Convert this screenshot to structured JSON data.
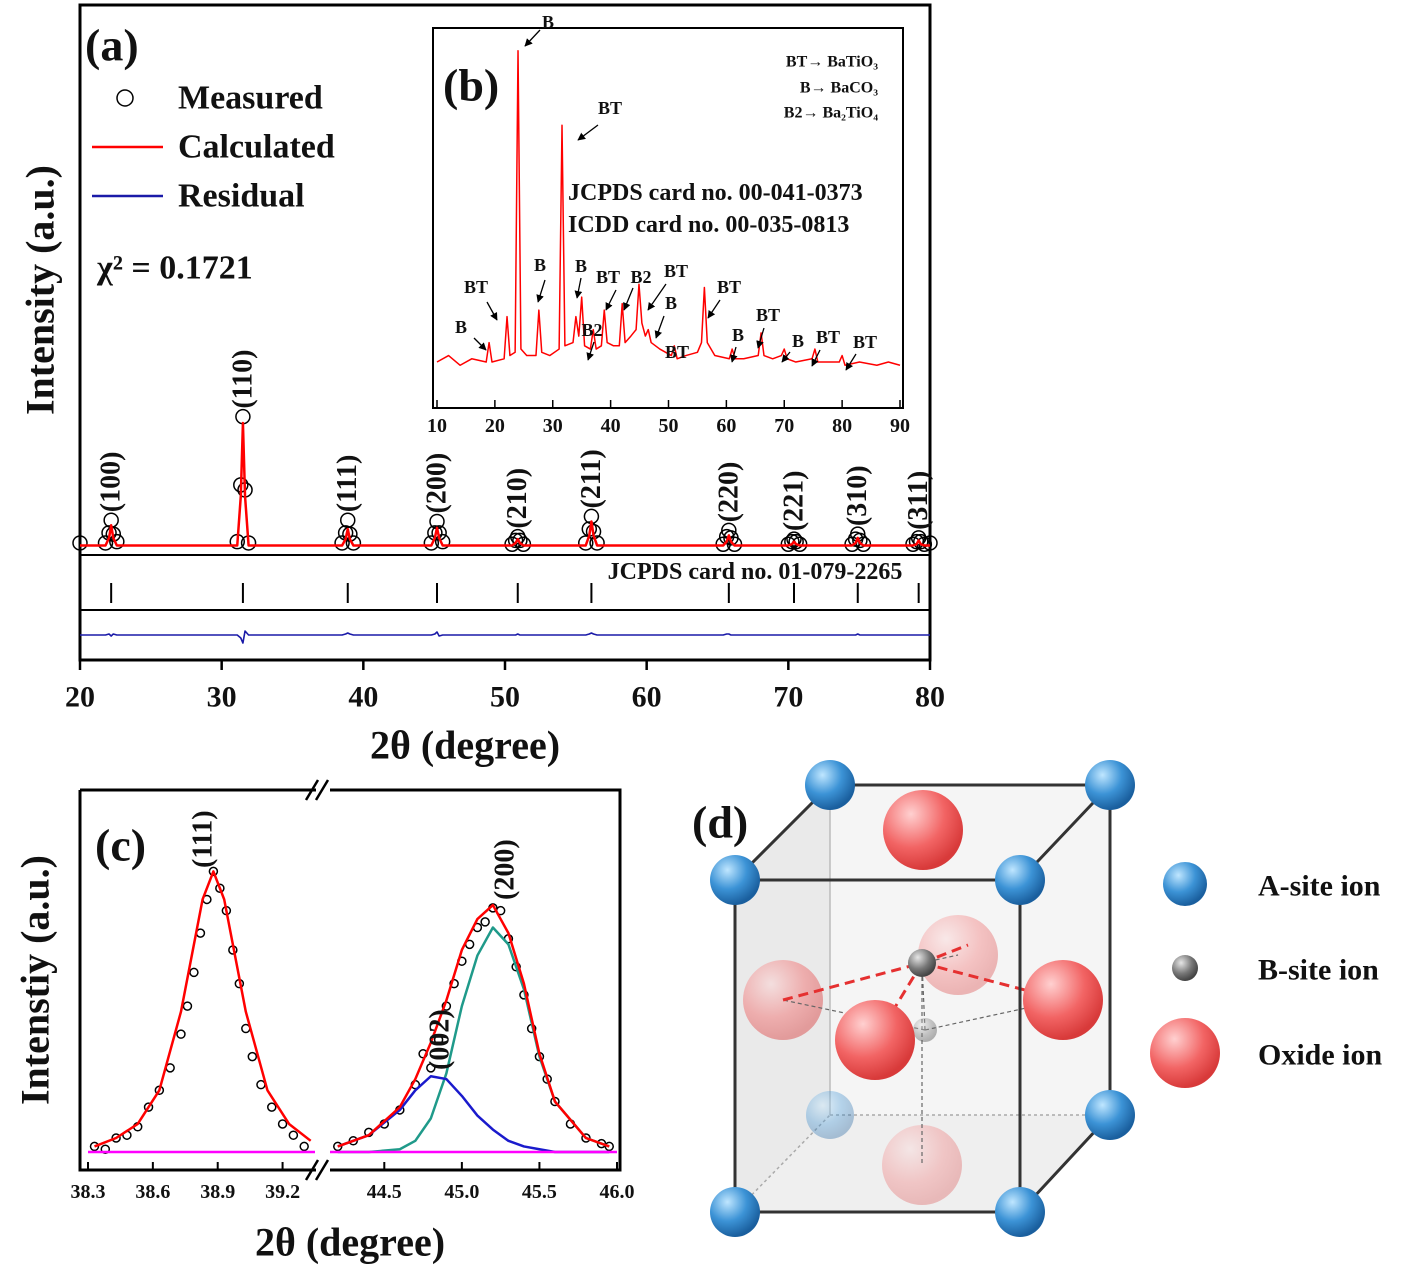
{
  "chart_data": [
    {
      "type": "line",
      "panel_label": "(a)",
      "xlabel": "2θ (degree)",
      "ylabel": "Intensity (a.u.)",
      "xlim": [
        20,
        80
      ],
      "xticks": [
        20,
        30,
        40,
        50,
        60,
        70,
        80
      ],
      "ylim": [
        0,
        430
      ],
      "y2lim": [
        -25,
        25
      ],
      "annotation": "χ² = 0.1721",
      "reference": {
        "label": "JCPDS card no. 01-079-2265",
        "positions": [
          22.2,
          31.5,
          38.9,
          45.2,
          50.9,
          56.1,
          65.8,
          70.4,
          74.9,
          79.2
        ],
        "peak_labels": [
          "(100)",
          "(110)",
          "(111)",
          "(200)",
          "(210)",
          "(211)",
          "(220)",
          "(221)",
          "(310)",
          "(311)"
        ]
      },
      "x": [
        20,
        21.8,
        22.05,
        22.2,
        22.35,
        22.6,
        31.1,
        31.35,
        31.5,
        31.65,
        31.9,
        38.5,
        38.75,
        38.9,
        39.05,
        39.3,
        44.8,
        45.05,
        45.2,
        45.35,
        45.6,
        50.5,
        50.75,
        50.9,
        51.05,
        51.3,
        55.7,
        55.95,
        56.1,
        56.25,
        56.5,
        65.4,
        65.65,
        65.8,
        65.95,
        66.2,
        70.0,
        70.25,
        70.4,
        70.55,
        70.8,
        74.5,
        74.75,
        74.9,
        75.05,
        75.3,
        78.8,
        79.05,
        79.2,
        79.35,
        79.6,
        80
      ],
      "series": [
        {
          "name": "Measured",
          "mode": "markers",
          "color": "#000000",
          "values": [
            4,
            4,
            12,
            22,
            11,
            5,
            5,
            50,
            104,
            46,
            4,
            4,
            12,
            22,
            11,
            4,
            4,
            12,
            21,
            12,
            5,
            3,
            6,
            9,
            6,
            3,
            4,
            15,
            25,
            13,
            4,
            3,
            9,
            14,
            8,
            3,
            3,
            5,
            7,
            5,
            3,
            3,
            7,
            11,
            6,
            3,
            3,
            5,
            8,
            5,
            3,
            4
          ]
        },
        {
          "name": "Calculated",
          "mode": "lines",
          "color": "#ff0000",
          "values": [
            2,
            2,
            8,
            18,
            8,
            2,
            2,
            41,
            99,
            41,
            2,
            2,
            7,
            15,
            7,
            2,
            2,
            8,
            16,
            8,
            2,
            2,
            4,
            7,
            4,
            2,
            2,
            10,
            21,
            10,
            2,
            2,
            5,
            10,
            5,
            2,
            2,
            3,
            5,
            3,
            2,
            2,
            4,
            8,
            4,
            2,
            2,
            3,
            6,
            3,
            2,
            2
          ]
        },
        {
          "name": "Residual",
          "mode": "lines",
          "color": "#1a1aa8",
          "axis": "y2",
          "values": [
            0,
            0,
            1,
            -1,
            1,
            0,
            0,
            -3,
            -8,
            4,
            0,
            0,
            1,
            2,
            1,
            0,
            0,
            1,
            3,
            -1,
            0,
            0,
            0,
            1,
            0,
            0,
            0,
            1,
            2,
            1,
            0,
            0,
            1,
            1,
            0,
            0,
            0,
            0,
            0,
            0,
            0,
            0,
            0,
            1,
            0,
            0,
            0,
            0,
            0,
            0,
            0,
            0
          ]
        }
      ]
    },
    {
      "type": "line",
      "panel_label": "(b)",
      "xlim": [
        10,
        90
      ],
      "xticks": [
        10,
        20,
        30,
        40,
        50,
        60,
        70,
        80,
        90
      ],
      "ylim": [
        0,
        107
      ],
      "notes": [
        "JCPDS card no. 00-041-0373",
        "ICDD card no. 00-035-0813"
      ],
      "legend_text": [
        "BT→ BaTiO₃",
        "B→ BaCO₃",
        "B2→ Ba₂TiO₄"
      ],
      "annotations": [
        "B",
        "BT",
        "BT",
        "B",
        "B",
        "B",
        "BT",
        "B2",
        "BT",
        "B",
        "B2",
        "BT",
        "BT",
        "B",
        "BT",
        "B",
        "BT",
        "BT"
      ],
      "x": [
        10,
        12,
        14,
        16,
        18.5,
        19,
        19.5,
        21.6,
        22.1,
        22.6,
        23.5,
        24,
        24.5,
        25.5,
        27.1,
        27.6,
        28.1,
        29.5,
        31.1,
        31.6,
        32.1,
        33.5,
        34,
        34.5,
        35,
        35.5,
        36.5,
        37,
        37.5,
        38.4,
        38.9,
        39.4,
        40.5,
        41.5,
        42,
        42.5,
        43.5,
        44.4,
        44.9,
        45.4,
        46,
        46.5,
        47,
        48.5,
        50.5,
        51,
        51.5,
        53,
        55,
        55.7,
        56.2,
        56.7,
        58,
        60.5,
        61,
        61.5,
        63,
        65.5,
        66,
        66.5,
        68,
        69.5,
        70,
        70.5,
        72,
        74.8,
        75.3,
        75.8,
        78,
        79.5,
        80,
        80.5,
        83,
        86,
        88,
        90
      ],
      "series": [
        {
          "color": "#ff0000",
          "values": [
            4,
            6,
            3,
            5,
            4,
            10,
            4,
            5,
            18,
            6,
            7,
            100,
            8,
            6,
            6,
            20,
            7,
            6,
            8,
            77,
            9,
            10,
            18,
            12,
            24,
            9,
            8,
            14,
            8,
            9,
            20,
            10,
            9,
            9,
            22,
            10,
            12,
            14,
            28,
            16,
            12,
            14,
            10,
            8,
            6,
            9,
            5,
            6,
            7,
            10,
            27,
            10,
            6,
            5,
            8,
            5,
            5,
            6,
            13,
            6,
            5,
            6,
            8,
            5,
            4,
            5,
            8,
            4,
            4,
            4,
            6,
            3,
            4,
            3,
            4,
            3
          ]
        }
      ]
    },
    {
      "type": "line",
      "panel_label": "(c)",
      "xlabel": "2θ (degree)",
      "ylabel": "Intenstiy (a.u.)",
      "xlim": [
        38.3,
        46.0
      ],
      "xbreak": [
        39.35,
        44.15
      ],
      "ylim": [
        -6.4,
        129
      ],
      "xticks": [
        38.3,
        38.6,
        38.9,
        39.2,
        44.5,
        {
          "value": 45,
          "label": "45.0"
        },
        45.5,
        {
          "value": 46,
          "label": "46.0"
        }
      ],
      "annotations": [
        "(111)",
        "(002)",
        "(200)"
      ],
      "series": [
        {
          "mode": "markers",
          "color": "#000000",
          "x": [
            38.33,
            38.38,
            38.43,
            38.48,
            38.53,
            38.58,
            38.63,
            38.68,
            38.73,
            38.76,
            38.79,
            38.82,
            38.85,
            38.88,
            38.91,
            38.94,
            38.97,
            39.0,
            39.03,
            39.06,
            39.1,
            39.15,
            39.2,
            39.25,
            39.3,
            44.2,
            44.3,
            44.4,
            44.5,
            44.6,
            44.7,
            44.75,
            44.8,
            44.85,
            44.9,
            44.95,
            45.0,
            45.05,
            45.1,
            45.15,
            45.2,
            45.25,
            45.3,
            45.35,
            45.4,
            45.45,
            45.5,
            45.55,
            45.6,
            45.7,
            45.8,
            45.9,
            45.95
          ],
          "values": [
            2,
            1,
            5,
            6,
            9,
            16,
            22,
            30,
            42,
            52,
            64,
            78,
            90,
            100,
            94,
            86,
            72,
            60,
            44,
            34,
            24,
            16,
            10,
            6,
            2,
            2,
            4,
            7,
            10,
            15,
            24,
            35,
            30,
            40,
            52,
            60,
            68,
            74,
            80,
            82,
            87,
            86,
            76,
            66,
            56,
            44,
            34,
            26,
            18,
            10,
            5,
            3,
            2
          ]
        },
        {
          "mode": "lines",
          "color": "#ff0000",
          "x": [
            38.33,
            38.43,
            38.53,
            38.63,
            38.73,
            38.78,
            38.83,
            38.88,
            38.93,
            38.98,
            39.03,
            39.13,
            39.23,
            39.33
          ],
          "values": [
            2,
            5,
            10,
            22,
            50,
            70,
            90,
            100,
            90,
            70,
            50,
            22,
            10,
            4
          ]
        },
        {
          "mode": "lines",
          "color": "#1f9a8a",
          "x": [
            44.2,
            44.4,
            44.6,
            44.7,
            44.8,
            44.9,
            45.0,
            45.1,
            45.2,
            45.3,
            45.4,
            45.5,
            45.6,
            45.8,
            45.95
          ],
          "values": [
            0,
            0,
            1,
            4,
            12,
            28,
            52,
            70,
            80,
            74,
            58,
            34,
            18,
            5,
            2
          ]
        },
        {
          "mode": "lines",
          "color": "#1a1acc",
          "x": [
            44.2,
            44.4,
            44.6,
            44.7,
            44.8,
            44.9,
            45.0,
            45.1,
            45.2,
            45.3,
            45.4,
            45.5,
            45.6,
            45.8,
            45.95
          ],
          "values": [
            2,
            6,
            15,
            22,
            27,
            26,
            20,
            13,
            8,
            4,
            2,
            1,
            0,
            0,
            0
          ]
        },
        {
          "mode": "lines",
          "color": "#ff0000",
          "x": [
            44.2,
            44.4,
            44.6,
            44.7,
            44.8,
            44.9,
            45.0,
            45.1,
            45.2,
            45.3,
            45.4,
            45.5,
            45.6,
            45.8,
            45.95
          ],
          "values": [
            2,
            6,
            16,
            26,
            39,
            54,
            72,
            83,
            88,
            78,
            60,
            35,
            18,
            5,
            2
          ]
        },
        {
          "mode": "lines",
          "color": "#ff00ff",
          "x": [
            38.3,
            39.35,
            44.15,
            46.0
          ],
          "values": [
            0,
            0,
            0,
            0
          ]
        }
      ]
    }
  ],
  "diagram": {
    "label": "(d)",
    "legend": [
      "A-site ion",
      "B-site ion",
      "Oxide ion"
    ]
  }
}
